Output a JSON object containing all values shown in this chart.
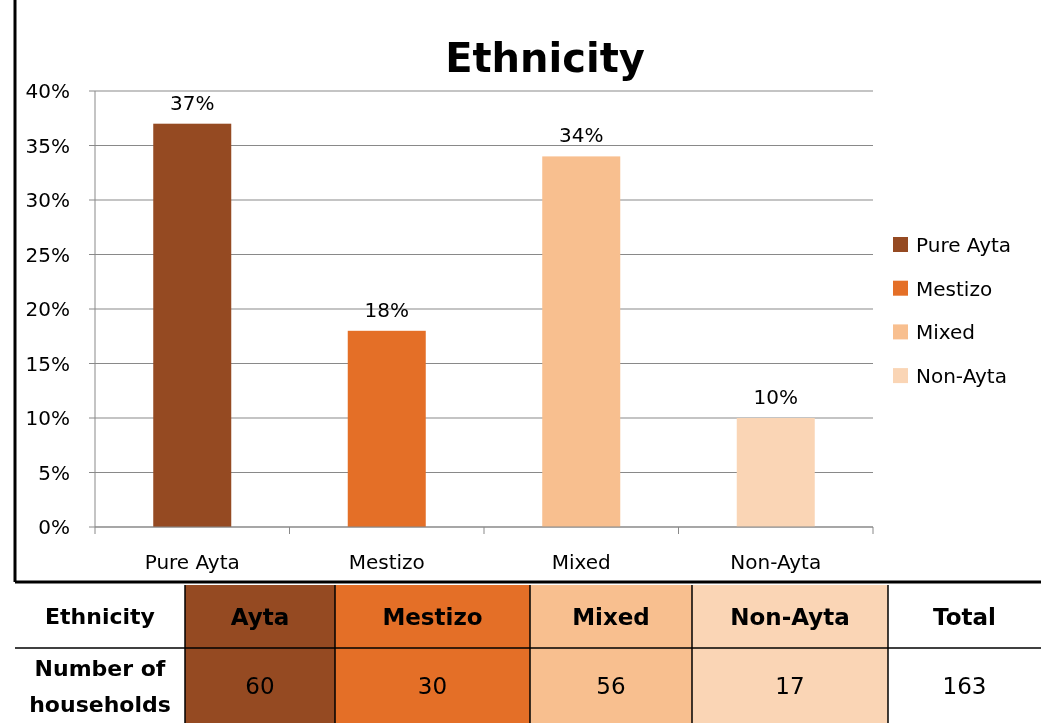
{
  "chart_data": [
    {
      "type": "bar",
      "title": "Ethnicity",
      "categories": [
        "Pure Ayta",
        "Mestizo",
        "Mixed",
        "Non-Ayta"
      ],
      "stacked": true,
      "series": [
        {
          "name": "Pure Ayta",
          "color": "#954a22",
          "values": [
            37,
            null,
            null,
            null
          ],
          "value_labels": [
            "37%",
            null,
            null,
            null
          ]
        },
        {
          "name": "Mestizo",
          "color": "#e46f27",
          "values": [
            null,
            18,
            null,
            null
          ],
          "value_labels": [
            null,
            "18%",
            null,
            null
          ]
        },
        {
          "name": "Mixed",
          "color": "#f8bf8f",
          "values": [
            null,
            null,
            34,
            null
          ],
          "value_labels": [
            null,
            null,
            "34%",
            null
          ]
        },
        {
          "name": "Non-Ayta",
          "color": "#fad5b5",
          "values": [
            null,
            null,
            null,
            10
          ],
          "value_labels": [
            null,
            null,
            null,
            "10%"
          ]
        }
      ],
      "ylim": [
        0,
        40
      ],
      "yticks": [
        {
          "value": 0,
          "label": "0%"
        },
        {
          "value": 5,
          "label": "5%"
        },
        {
          "value": 10,
          "label": "10%"
        },
        {
          "value": 15,
          "label": "15%"
        },
        {
          "value": 20,
          "label": "20%"
        },
        {
          "value": 25,
          "label": "25%"
        },
        {
          "value": 30,
          "label": "30%"
        },
        {
          "value": 35,
          "label": "35%"
        },
        {
          "value": 40,
          "label": "40%"
        }
      ],
      "grid": "y",
      "legend": "right"
    },
    {
      "type": "other",
      "xlabel": "Ethnicity",
      "ylabel": "Number of households",
      "categories": [
        "Ayta",
        "Mestizo",
        "Mixed",
        "Non-Ayta",
        "Total"
      ],
      "values": [
        60,
        30,
        56,
        17,
        163
      ],
      "colors": [
        "#954a22",
        "#e46f27",
        "#f8bf8f",
        "#fad5b5",
        "#ffffff"
      ],
      "data_labels": true
    }
  ]
}
